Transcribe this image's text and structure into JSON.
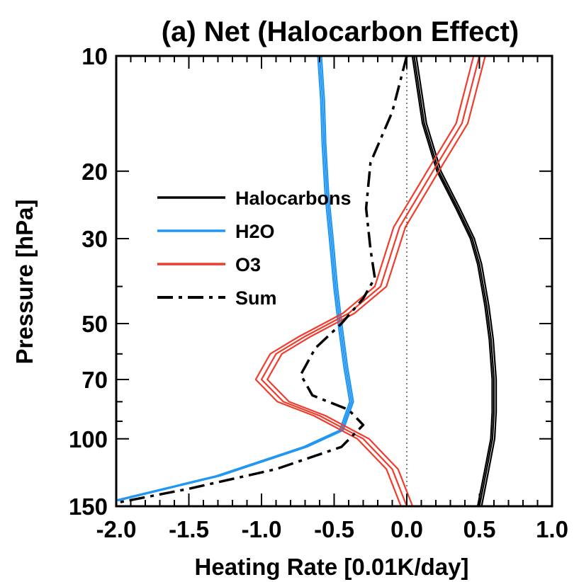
{
  "chart_data": {
    "type": "line",
    "title": "(a) Net (Halocarbon Effect)",
    "xlabel": "Heating Rate [0.01K/day]",
    "ylabel": "Pressure [hPa]",
    "xlim": [
      -2.0,
      1.0
    ],
    "ylim": [
      150,
      10
    ],
    "y_scale": "log",
    "x_ticks": [
      -2.0,
      -1.5,
      -1.0,
      -0.5,
      0.0,
      0.5,
      1.0
    ],
    "x_tick_labels": [
      "-2.0",
      "-1.5",
      "-1.0",
      "-0.5",
      "0.0",
      "0.5",
      "1.0"
    ],
    "y_ticks": [
      10,
      20,
      30,
      50,
      70,
      100,
      150
    ],
    "y_tick_labels": [
      "10",
      "20",
      "30",
      "50",
      "70",
      "100",
      "150"
    ],
    "zero_line": 0.0,
    "grid": false,
    "legend_position": "upper-left",
    "series": [
      {
        "name": "Halocarbons",
        "color": "#000000",
        "dash": "solid",
        "ensemble": [
          0.0,
          0.015,
          -0.012
        ],
        "points": [
          [
            0.05,
            10
          ],
          [
            0.12,
            15
          ],
          [
            0.22,
            20
          ],
          [
            0.35,
            25
          ],
          [
            0.45,
            30
          ],
          [
            0.5,
            35
          ],
          [
            0.55,
            45
          ],
          [
            0.58,
            55
          ],
          [
            0.6,
            70
          ],
          [
            0.6,
            85
          ],
          [
            0.59,
            100
          ],
          [
            0.55,
            120
          ],
          [
            0.5,
            150
          ]
        ]
      },
      {
        "name": "H2O",
        "color": "#2196f3",
        "dash": "solid",
        "ensemble": [
          0.0,
          0.012,
          -0.012
        ],
        "points": [
          [
            -0.6,
            10
          ],
          [
            -0.58,
            13
          ],
          [
            -0.57,
            17
          ],
          [
            -0.55,
            23
          ],
          [
            -0.52,
            30
          ],
          [
            -0.49,
            40
          ],
          [
            -0.46,
            50
          ],
          [
            -0.42,
            65
          ],
          [
            -0.38,
            80
          ],
          [
            -0.45,
            95
          ],
          [
            -0.7,
            105
          ],
          [
            -1.3,
            125
          ],
          [
            -2.0,
            145
          ]
        ]
      },
      {
        "name": "O3",
        "color": "#f03c2c",
        "dash": "solid",
        "ensemble": [
          0.0,
          0.04,
          -0.04
        ],
        "points": [
          [
            0.5,
            10
          ],
          [
            0.38,
            15
          ],
          [
            0.18,
            20
          ],
          [
            -0.05,
            28
          ],
          [
            -0.18,
            40
          ],
          [
            -0.4,
            47
          ],
          [
            -0.7,
            54
          ],
          [
            -0.9,
            60
          ],
          [
            -1.0,
            70
          ],
          [
            -0.85,
            80
          ],
          [
            -0.6,
            87
          ],
          [
            -0.3,
            100
          ],
          [
            -0.1,
            120
          ],
          [
            0.0,
            150
          ]
        ]
      },
      {
        "name": "Sum",
        "color": "#000000",
        "dash": "dashdot",
        "ensemble": [
          0.0
        ],
        "points": [
          [
            0.0,
            10
          ],
          [
            -0.1,
            14
          ],
          [
            -0.25,
            19
          ],
          [
            -0.28,
            25
          ],
          [
            -0.25,
            32
          ],
          [
            -0.22,
            38
          ],
          [
            -0.3,
            43
          ],
          [
            -0.45,
            50
          ],
          [
            -0.63,
            58
          ],
          [
            -0.73,
            68
          ],
          [
            -0.65,
            77
          ],
          [
            -0.4,
            84
          ],
          [
            -0.3,
            92
          ],
          [
            -0.45,
            105
          ],
          [
            -0.9,
            120
          ],
          [
            -1.5,
            135
          ],
          [
            -2.0,
            147
          ]
        ]
      }
    ]
  }
}
